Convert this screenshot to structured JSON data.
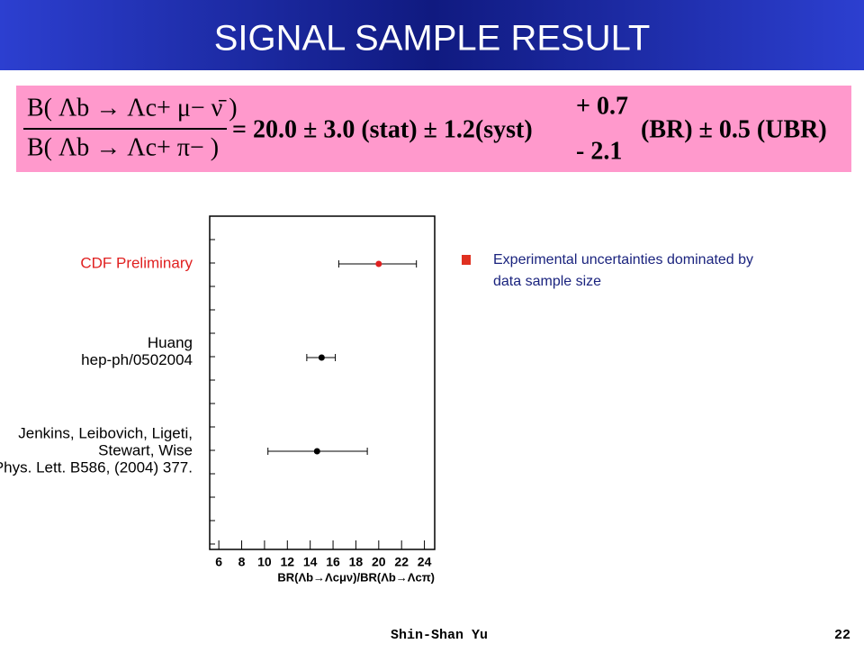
{
  "header": {
    "title": "SIGNAL SAMPLE RESULT"
  },
  "formula": {
    "numerator": "B( Λb → Λc+ μ− ν̄ )",
    "denominator": "B( Λb → Λc+ π− )",
    "result": "= 20.0 ± 3.0 (stat) ± 1.2(syst)",
    "plus": "+ 0.7",
    "minus": "- 2.1",
    "tail": "(BR) ± 0.5 (UBR)"
  },
  "bullets": [
    [
      "Experimental uncertainties dominated by",
      "data sample size"
    ]
  ],
  "footer": {
    "author": "Shin-Shan Yu",
    "page": "22"
  },
  "chart_data": {
    "type": "errorbar",
    "categories": [
      [
        "CDF Preliminary"
      ],
      [
        "Huang",
        "hep-ph/0502004"
      ],
      [
        "Jenkins, Leibovich, Ligeti,",
        "Stewart, Wise",
        "Phys. Lett. B586, (2004) 377."
      ]
    ],
    "values": [
      20.0,
      15.0,
      14.6
    ],
    "err_low": [
      3.5,
      1.3,
      4.3
    ],
    "err_high": [
      3.3,
      1.2,
      4.4
    ],
    "colors": [
      "#e02020",
      "#000000",
      "#000000"
    ],
    "xlabel": "BR(Λb→Λcμν)/BR(Λb→Λcπ)",
    "xlim": [
      5.2,
      24.9
    ],
    "xticks": [
      6,
      8,
      10,
      12,
      14,
      16,
      18,
      20,
      22,
      24
    ]
  }
}
